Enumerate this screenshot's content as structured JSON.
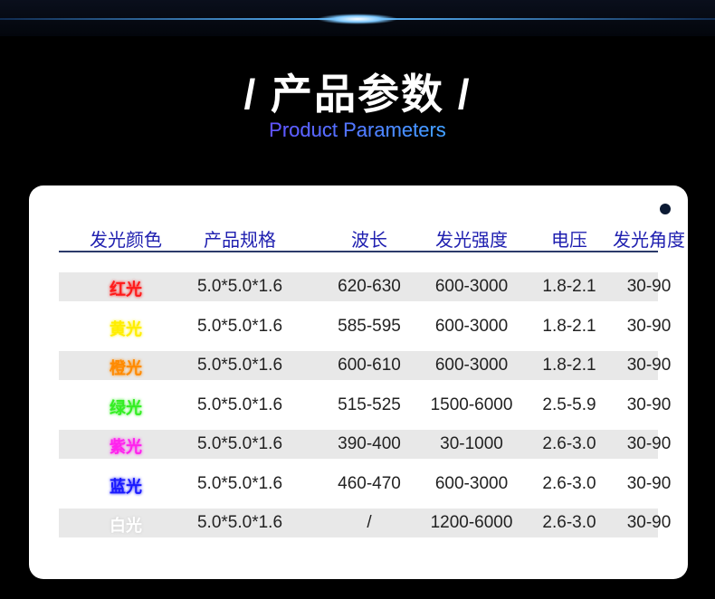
{
  "header": {
    "title": "/ 产品参数 /",
    "subtitle": "Product Parameters"
  },
  "table": {
    "columns": [
      "发光颜色",
      "产品规格",
      "波长",
      "发光强度",
      "电压",
      "发光角度"
    ],
    "rows": [
      {
        "color": "红光",
        "hex": "#ff1a1a",
        "spec": "5.0*5.0*1.6",
        "wavelength": "620-630",
        "intensity": "600-3000",
        "voltage": "1.8-2.1",
        "angle": "30-90"
      },
      {
        "color": "黄光",
        "hex": "#ffee00",
        "spec": "5.0*5.0*1.6",
        "wavelength": "585-595",
        "intensity": "600-3000",
        "voltage": "1.8-2.1",
        "angle": "30-90"
      },
      {
        "color": "橙光",
        "hex": "#ff8a00",
        "spec": "5.0*5.0*1.6",
        "wavelength": "600-610",
        "intensity": "600-3000",
        "voltage": "1.8-2.1",
        "angle": "30-90"
      },
      {
        "color": "绿光",
        "hex": "#33ee22",
        "spec": "5.0*5.0*1.6",
        "wavelength": "515-525",
        "intensity": "1500-6000",
        "voltage": "2.5-5.9",
        "angle": "30-90"
      },
      {
        "color": "紫光",
        "hex": "#ff22ee",
        "spec": "5.0*5.0*1.6",
        "wavelength": "390-400",
        "intensity": "30-1000",
        "voltage": "2.6-3.0",
        "angle": "30-90"
      },
      {
        "color": "蓝光",
        "hex": "#1a1aff",
        "spec": "5.0*5.0*1.6",
        "wavelength": "460-470",
        "intensity": "600-3000",
        "voltage": "2.6-3.0",
        "angle": "30-90"
      },
      {
        "color": "白光",
        "hex": "#ffffff",
        "spec": "5.0*5.0*1.6",
        "wavelength": "/",
        "intensity": "1200-6000",
        "voltage": "2.6-3.0",
        "angle": "30-90"
      }
    ]
  }
}
